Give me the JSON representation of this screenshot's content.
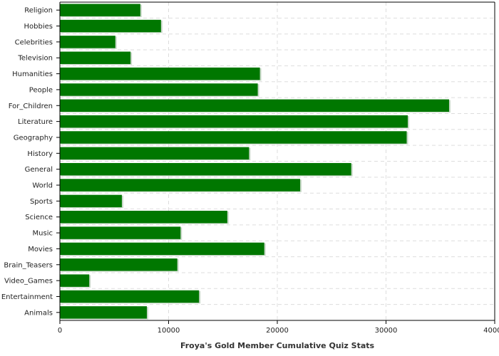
{
  "chart_data": {
    "type": "bar",
    "orientation": "horizontal",
    "title": "",
    "xlabel": "Froya's Gold Member Cumulative Quiz Stats",
    "ylabel": "",
    "xlim": [
      0,
      40000
    ],
    "xticks": [
      0,
      10000,
      20000,
      30000,
      40000
    ],
    "grid": true,
    "bar_color": "#007700",
    "categories": [
      "Religion",
      "Hobbies",
      "Celebrities",
      "Television",
      "Humanities",
      "People",
      "For_Children",
      "Literature",
      "Geography",
      "History",
      "General",
      "World",
      "Sports",
      "Science",
      "Music",
      "Movies",
      "Brain_Teasers",
      "Video_Games",
      "Entertainment",
      "Animals"
    ],
    "values": [
      7400,
      9300,
      5100,
      6500,
      18400,
      18200,
      35800,
      32000,
      31900,
      17400,
      26800,
      22100,
      5700,
      15400,
      11100,
      18800,
      10800,
      2700,
      12800,
      8000
    ]
  }
}
